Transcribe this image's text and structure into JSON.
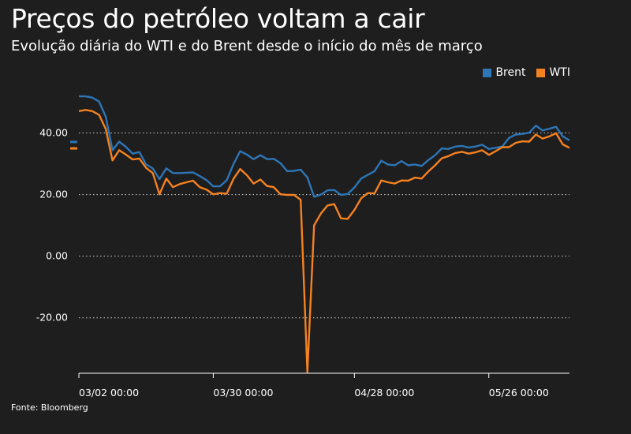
{
  "title": "Preços do petróleo voltam a cair",
  "subtitle": "Evolução diária do WTI e do Brent desde o início do mês de março",
  "source": "Fonte: Bloomberg",
  "chart_data": {
    "type": "line",
    "title": "Preços do petróleo voltam a cair",
    "subtitle": "Evolução diária do WTI e do Brent desde o início do mês de março",
    "xlabel": "",
    "ylabel": "",
    "x_tick_labels": [
      {
        "label": "03/02 00:00",
        "index": 0
      },
      {
        "label": "03/30 00:00",
        "index": 20
      },
      {
        "label": "04/28 00:00",
        "index": 41
      },
      {
        "label": "05/26 00:00",
        "index": 61
      }
    ],
    "y_ticks": [
      40,
      20,
      0,
      -20
    ],
    "y_tick_labels": [
      "40.00",
      "20.00",
      "0.00",
      "-20.00"
    ],
    "ylim": [
      -38,
      55
    ],
    "grid": "horizontal dotted",
    "legend_position": "top-right",
    "series": [
      {
        "name": "Brent",
        "color": "#2e75b6",
        "values": [
          51.9,
          51.9,
          51.5,
          50.2,
          45.3,
          34.4,
          37.2,
          35.5,
          33.3,
          33.8,
          29.8,
          28.5,
          25.0,
          28.5,
          27.0,
          27.0,
          27.1,
          27.2,
          26.0,
          24.7,
          22.7,
          22.7,
          24.7,
          29.9,
          34.1,
          33.0,
          31.5,
          32.8,
          31.5,
          31.6,
          30.2,
          27.6,
          27.7,
          28.1,
          25.6,
          19.3,
          20.0,
          21.4,
          21.5,
          19.9,
          20.2,
          22.3,
          25.2,
          26.4,
          27.6,
          31.0,
          29.8,
          29.5,
          30.9,
          29.5,
          29.8,
          29.3,
          31.2,
          32.8,
          35.0,
          34.8,
          35.6,
          35.8,
          35.3,
          35.6,
          36.2,
          34.8,
          35.2,
          35.6,
          38.4,
          39.5,
          39.7,
          40.1,
          42.4,
          40.8,
          41.4,
          42.0,
          38.9,
          37.6
        ],
        "end_marker": 37.1
      },
      {
        "name": "WTI",
        "color": "#f5821f",
        "values": [
          47.1,
          47.5,
          47.1,
          45.9,
          41.3,
          31.1,
          34.4,
          33.0,
          31.4,
          31.7,
          28.7,
          27.0,
          20.1,
          25.2,
          22.4,
          23.4,
          24.0,
          24.5,
          22.4,
          21.6,
          20.1,
          20.5,
          20.3,
          25.1,
          28.3,
          26.3,
          23.6,
          24.9,
          22.8,
          22.4,
          20.1,
          19.9,
          19.9,
          18.3,
          -37.6,
          10.0,
          13.8,
          16.5,
          16.9,
          12.3,
          12.1,
          15.0,
          18.8,
          20.5,
          20.4,
          24.6,
          24.0,
          23.6,
          24.6,
          24.5,
          25.5,
          25.2,
          27.5,
          29.5,
          31.8,
          32.5,
          33.5,
          33.9,
          33.3,
          33.7,
          34.4,
          32.9,
          34.1,
          35.4,
          35.4,
          36.8,
          37.3,
          37.2,
          39.5,
          38.2,
          38.9,
          39.9,
          36.3,
          35.2
        ],
        "end_marker": 35.0
      }
    ]
  }
}
